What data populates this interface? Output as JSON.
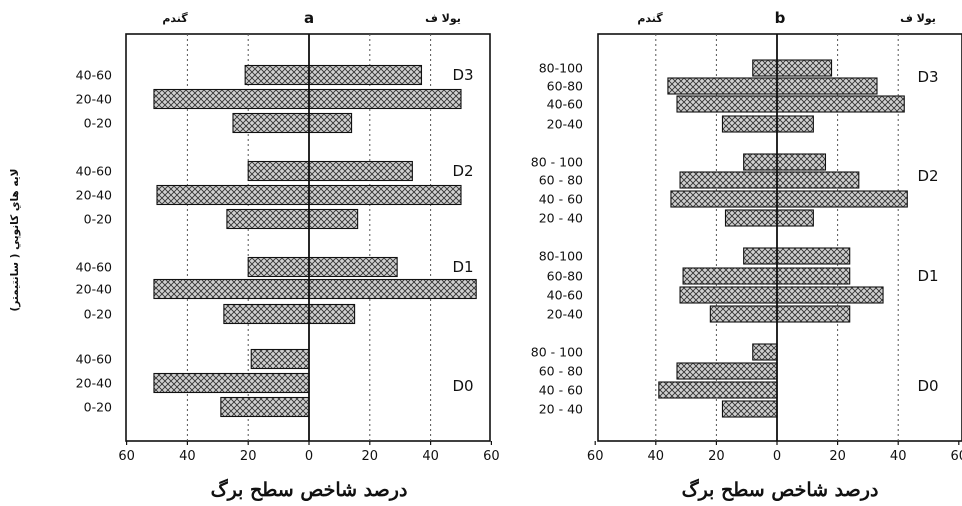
{
  "colors": {
    "bar_fill": "#c8c8c8",
    "bar_stroke": "#111111",
    "grid": "#555555"
  },
  "chart_data": [
    {
      "type": "bar",
      "orientation": "horizontal",
      "panel_label": "a",
      "left_label": "گندم",
      "right_label": "يولا ف",
      "xlabel": "درصد شاخص سطح برگ",
      "ylabel": "لايه هاي كانوپي ( سانتيمتر)",
      "xlim": [
        -60,
        60
      ],
      "x_ticks": [
        "60",
        "40",
        "20",
        "0",
        "20",
        "40",
        "60"
      ],
      "grid": "dotted vertical",
      "groups": [
        {
          "name": "D3",
          "categories": [
            "40-60",
            "20-40",
            "0-20"
          ],
          "wheat": [
            -21,
            -51,
            -25
          ],
          "oat": [
            37,
            50,
            14
          ]
        },
        {
          "name": "D2",
          "categories": [
            "40-60",
            "20-40",
            "0-20"
          ],
          "wheat": [
            -20,
            -50,
            -27
          ],
          "oat": [
            34,
            50,
            16
          ]
        },
        {
          "name": "D1",
          "categories": [
            "40-60",
            "20-40",
            "0-20"
          ],
          "wheat": [
            -20,
            -51,
            -28
          ],
          "oat": [
            29,
            55,
            15
          ]
        },
        {
          "name": "D0",
          "categories": [
            "40-60",
            "20-40",
            "0-20"
          ],
          "wheat": [
            -19,
            -51,
            -29
          ],
          "oat": [
            0,
            0,
            0
          ]
        }
      ]
    },
    {
      "type": "bar",
      "orientation": "horizontal",
      "panel_label": "b",
      "left_label": "گندم",
      "right_label": "يولا ف",
      "xlabel": "درصد شاخص سطح برگ",
      "xlim": [
        -60,
        60
      ],
      "x_ticks": [
        "60",
        "40",
        "20",
        "0",
        "20",
        "40",
        "60"
      ],
      "grid": "dotted vertical",
      "groups": [
        {
          "name": "D3",
          "categories": [
            "80-100",
            "60-80",
            "40-60",
            "20-40"
          ],
          "wheat": [
            -8,
            -36,
            -33,
            -18
          ],
          "oat": [
            18,
            33,
            42,
            12
          ]
        },
        {
          "name": "D2",
          "categories": [
            "80 - 100",
            "60 - 80",
            "40 - 60",
            "20 - 40"
          ],
          "wheat": [
            -11,
            -32,
            -35,
            -17
          ],
          "oat": [
            16,
            27,
            43,
            12
          ]
        },
        {
          "name": "D1",
          "categories": [
            "80-100",
            "60-80",
            "40-60",
            "20-40"
          ],
          "wheat": [
            -11,
            -31,
            -32,
            -22
          ],
          "oat": [
            24,
            24,
            35,
            24
          ]
        },
        {
          "name": "D0",
          "categories": [
            "80 - 100",
            "60 - 80",
            "40 - 60",
            "20 - 40"
          ],
          "wheat": [
            -8,
            -33,
            -39,
            -18
          ],
          "oat": [
            0,
            0,
            0,
            0
          ]
        }
      ]
    }
  ]
}
